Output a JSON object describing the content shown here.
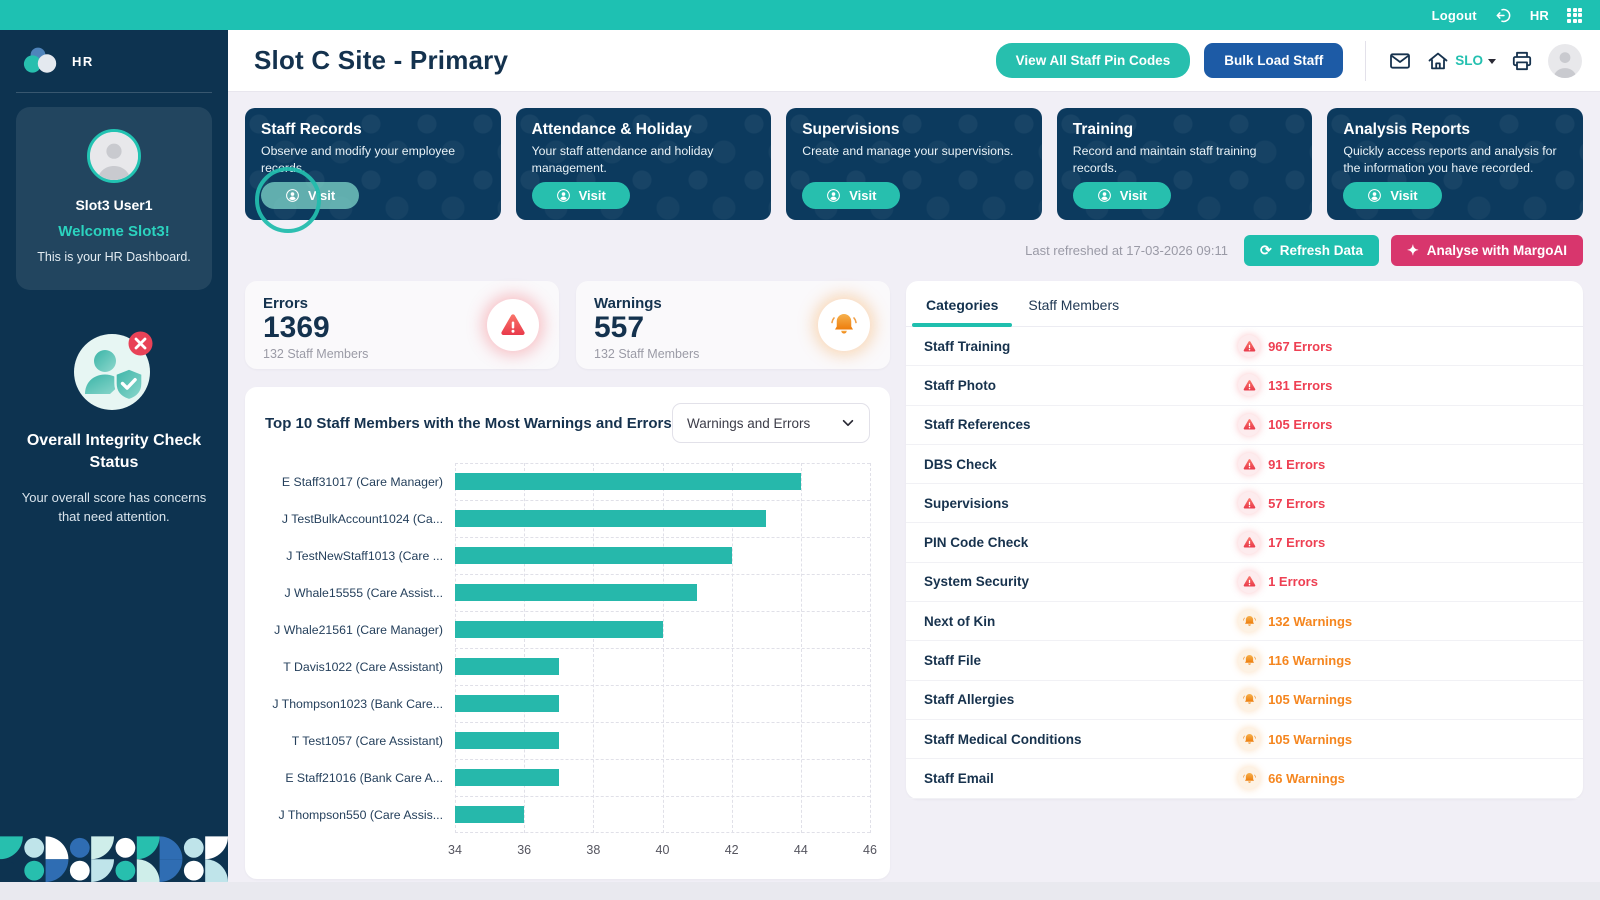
{
  "topbar": {
    "logout_label": "Logout",
    "org_label": "HR"
  },
  "sidebar": {
    "logo_text": "HR",
    "user": {
      "name": "Slot3 User1",
      "welcome": "Welcome Slot3!",
      "subtitle": "This is your HR Dashboard."
    },
    "integrity": {
      "title": "Overall Integrity Check Status",
      "description": "Your overall score has concerns that need attention."
    }
  },
  "header": {
    "title": "Slot C Site - Primary",
    "pin_codes_button": "View All Staff Pin Codes",
    "bulk_load_button": "Bulk Load Staff",
    "site_code": "SLO"
  },
  "nav_cards": [
    {
      "title": "Staff Records",
      "description": "Observe and modify your employee records.",
      "visit_label": "Visit",
      "state": "highlighted"
    },
    {
      "title": "Attendance & Holiday",
      "description": "Your staff attendance and holiday management.",
      "visit_label": "Visit",
      "state": "normal"
    },
    {
      "title": "Supervisions",
      "description": "Create and manage your supervisions.",
      "visit_label": "Visit",
      "state": "normal"
    },
    {
      "title": "Training",
      "description": "Record and maintain staff training records.",
      "visit_label": "Visit",
      "state": "normal"
    },
    {
      "title": "Analysis Reports",
      "description": "Quickly access reports and analysis for the information you have recorded.",
      "visit_label": "Visit",
      "state": "normal"
    }
  ],
  "refresh": {
    "last_refreshed": "Last refreshed at 17-03-2026 09:11",
    "refresh_button": "Refresh Data",
    "analyse_button": "Analyse with MargoAI"
  },
  "summary": {
    "errors": {
      "label": "Errors",
      "value": "1369",
      "subtitle": "132 Staff Members"
    },
    "warnings": {
      "label": "Warnings",
      "value": "557",
      "subtitle": "132 Staff Members"
    }
  },
  "chart_card": {
    "title": "Top 10 Staff Members with the Most Warnings and Errors",
    "filter_value": "Warnings and Errors"
  },
  "chart_data": {
    "type": "bar",
    "orientation": "horizontal",
    "title": "Top 10 Staff Members with the Most Warnings and Errors",
    "categories": [
      "E Staff31017 (Care Manager)",
      "J TestBulkAccount1024 (Ca...",
      "J TestNewStaff1013 (Care ...",
      "J Whale15555 (Care Assist...",
      "J Whale21561 (Care Manager)",
      "T Davis1022 (Care Assistant)",
      "J Thompson1023 (Bank Care...",
      "T Test1057 (Care Assistant)",
      "E Staff21016 (Bank Care A...",
      "J Thompson550 (Care Assis..."
    ],
    "values": [
      44,
      43,
      42,
      41,
      40,
      37,
      37,
      37,
      37,
      36
    ],
    "xlim": [
      34,
      46
    ],
    "xticks": [
      34,
      36,
      38,
      40,
      42,
      44,
      46
    ],
    "bar_color": "#26b8ab",
    "grid": true,
    "legend": false
  },
  "right_panel": {
    "tabs": [
      {
        "label": "Categories",
        "state": "active"
      },
      {
        "label": "Staff Members",
        "state": "inactive"
      }
    ],
    "rows": [
      {
        "name": "Staff Training",
        "label": "967 Errors",
        "type": "error"
      },
      {
        "name": "Staff Photo",
        "label": "131 Errors",
        "type": "error"
      },
      {
        "name": "Staff References",
        "label": "105 Errors",
        "type": "error"
      },
      {
        "name": "DBS Check",
        "label": "91 Errors",
        "type": "error"
      },
      {
        "name": "Supervisions",
        "label": "57 Errors",
        "type": "error"
      },
      {
        "name": "PIN Code Check",
        "label": "17 Errors",
        "type": "error"
      },
      {
        "name": "System Security",
        "label": "1 Errors",
        "type": "error"
      },
      {
        "name": "Next of Kin",
        "label": "132 Warnings",
        "type": "warning"
      },
      {
        "name": "Staff File",
        "label": "116 Warnings",
        "type": "warning"
      },
      {
        "name": "Staff Allergies",
        "label": "105 Warnings",
        "type": "warning"
      },
      {
        "name": "Staff Medical Conditions",
        "label": "105 Warnings",
        "type": "warning"
      },
      {
        "name": "Staff Email",
        "label": "66 Warnings",
        "type": "warning"
      }
    ]
  },
  "colors": {
    "accent_teal": "#1ec1b2",
    "sidebar_navy": "#0d3350",
    "card_navy": "#0c3a5e",
    "blue_button": "#1d5ba6",
    "magenta_button": "#d8366d",
    "error_red": "#ee4053",
    "warning_orange": "#f5861f",
    "bar_teal": "#26b8ab"
  }
}
